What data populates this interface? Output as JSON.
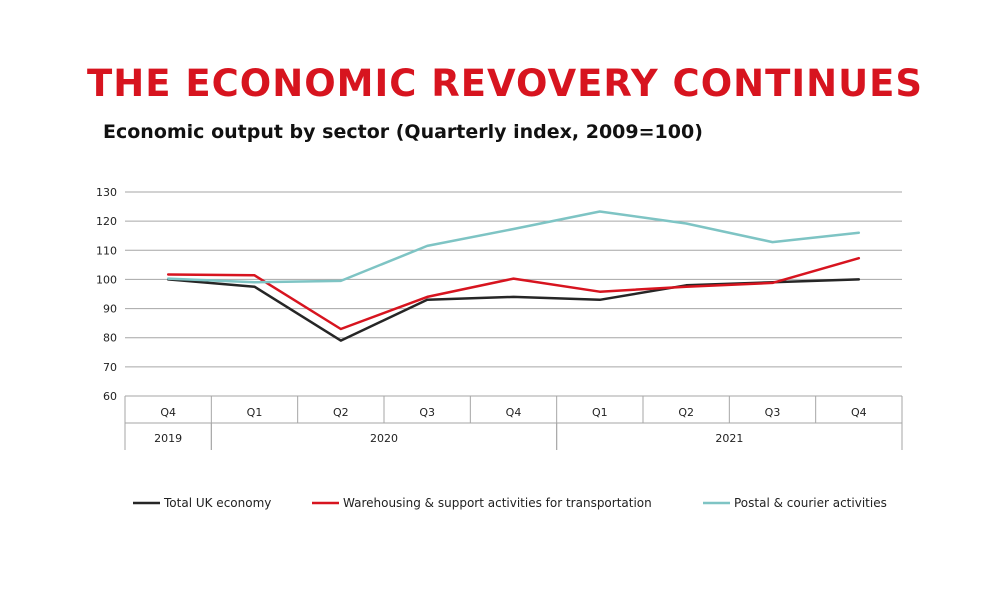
{
  "headline": "THE ECONOMIC REVOVERY CONTINUES",
  "chart_data": {
    "type": "line",
    "title": "Economic output by sector (Quarterly index, 2009=100)",
    "categories": [
      "Q4",
      "Q1",
      "Q2",
      "Q3",
      "Q4",
      "Q1",
      "Q2",
      "Q3",
      "Q4"
    ],
    "year_groups": [
      {
        "label": "2019",
        "start": 0,
        "end": 0
      },
      {
        "label": "2020",
        "start": 1,
        "end": 4
      },
      {
        "label": "2021",
        "start": 5,
        "end": 8
      }
    ],
    "ylim": [
      60,
      130
    ],
    "yticks": [
      60,
      70,
      80,
      90,
      100,
      110,
      120,
      130
    ],
    "grid": true,
    "legend_position": "bottom",
    "series": [
      {
        "name": "Total UK economy",
        "color": "#262626",
        "values": [
          100,
          97.5,
          79,
          93,
          94,
          93,
          98,
          99,
          100
        ]
      },
      {
        "name": "Warehousing & support activities for transportation",
        "color": "#d7141f",
        "values": [
          101.7,
          101.4,
          83,
          94,
          100.3,
          95.8,
          97.5,
          98.8,
          107.3
        ]
      },
      {
        "name": "Postal & courier activities",
        "color": "#7ec4c4",
        "values": [
          100.3,
          99,
          99.5,
          111.5,
          117.3,
          123.3,
          119.2,
          112.8,
          116
        ]
      }
    ]
  }
}
